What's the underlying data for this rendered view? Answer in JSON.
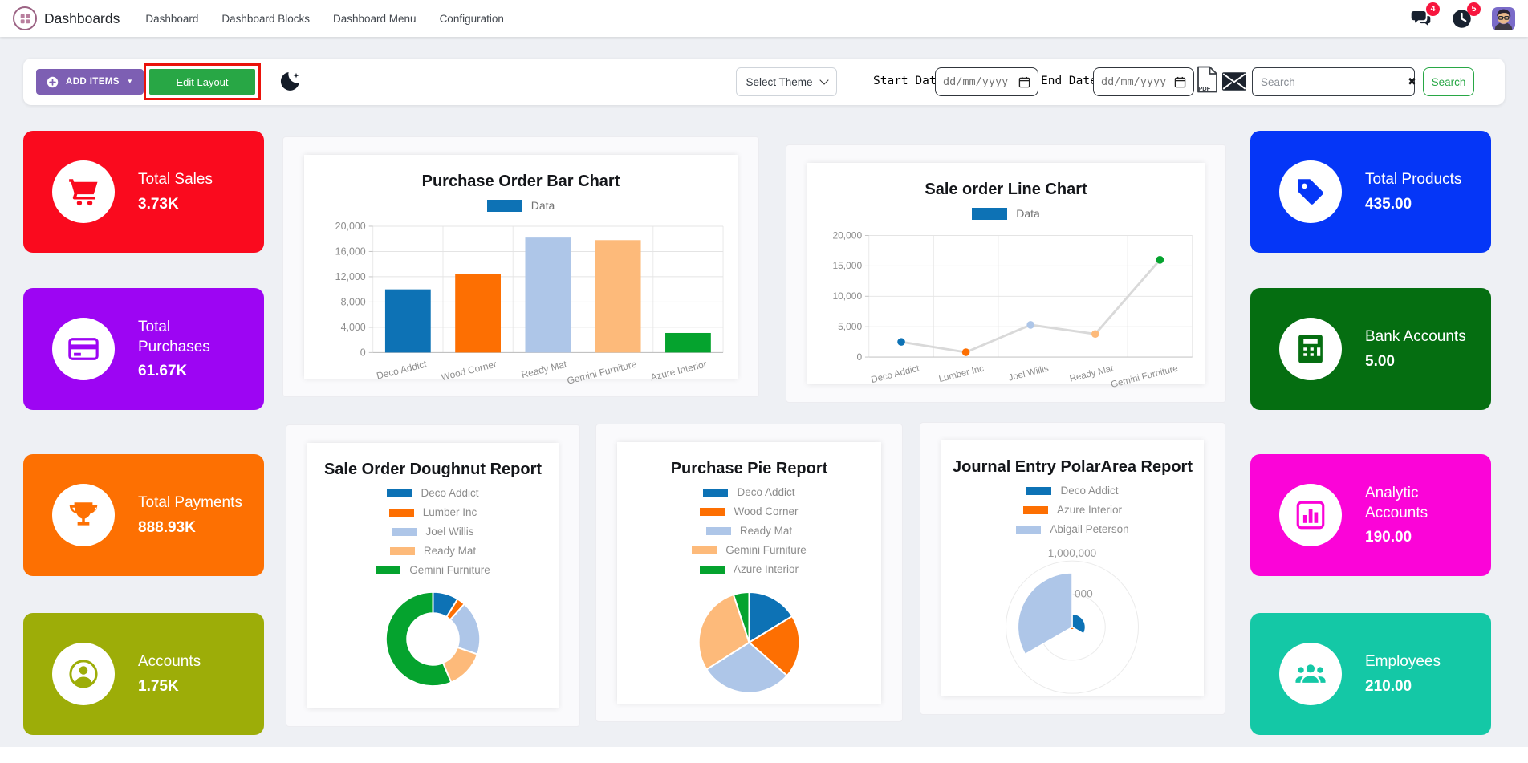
{
  "navbar": {
    "brand": "Dashboards",
    "menu_items": [
      "Dashboard",
      "Dashboard Blocks",
      "Dashboard Menu",
      "Configuration"
    ],
    "messages_badge_count": "4",
    "activities_badge_count": "5",
    "badge_color": "#f7163e"
  },
  "toolbar": {
    "add_items": {
      "label": "ADD ITEMS",
      "color": "#7d5fb3",
      "caret_glyph": "▼"
    },
    "edit_layout_label": "Edit Layout",
    "edit_layout_color": "#28a745",
    "highlight_color": "#ea130b",
    "select_theme_label": "Select Theme",
    "start_date_label": "Start Date:",
    "end_date_label": "End Date:",
    "date_placeholder": "dd/mm/yyyy",
    "pdf_icon_label": "PDF",
    "search": {
      "placeholder": "Search",
      "clear_glyph": "✖",
      "button_label": "Search",
      "button_color": "#28a745"
    }
  },
  "kpi_tiles": {
    "left": [
      {
        "label": "Total Sales",
        "value": "3.73K",
        "color": "#fa0a1e",
        "icon": "shopping-cart-icon"
      },
      {
        "label": "Total Purchases",
        "value": "61.67K",
        "color": "#9d05f3",
        "icon": "credit-card-icon"
      },
      {
        "label": "Total Payments",
        "value": "888.93K",
        "color": "#fd7002",
        "icon": "trophy-icon"
      },
      {
        "label": "Accounts",
        "value": "1.75K",
        "color": "#9dad08",
        "icon": "person-circle-icon"
      }
    ],
    "right": [
      {
        "label": "Total Products",
        "value": "435.00",
        "color": "#0536f7",
        "icon": "tag-icon"
      },
      {
        "label": "Bank Accounts",
        "value": "5.00",
        "color": "#056e11",
        "icon": "calculator-icon"
      },
      {
        "label": "Analytic Accounts",
        "value": "190.00",
        "color": "#fb04d8",
        "icon": "bar-chart-icon"
      },
      {
        "label": "Employees",
        "value": "210.00",
        "color": "#14c8a6",
        "icon": "employees-icon"
      }
    ]
  },
  "chart_data": [
    {
      "type": "bar",
      "title": "Purchase Order Bar Chart",
      "legend": [
        {
          "label": "Data",
          "color": "#0d72b5"
        }
      ],
      "legend_position": "top",
      "categories": [
        "Deco Addict",
        "Wood Corner",
        "Ready Mat",
        "Gemini Furniture",
        "Azure Interior"
      ],
      "values": [
        10000,
        12400,
        18200,
        17800,
        3100
      ],
      "bar_colors": [
        "#0d72b5",
        "#fd6f02",
        "#aec6e8",
        "#fdba7a",
        "#05a32e"
      ],
      "ylim": [
        0,
        20000
      ],
      "ytick_step": 4000,
      "grid": true
    },
    {
      "type": "line",
      "title": "Sale order Line Chart",
      "legend": [
        {
          "label": "Data",
          "color": "#0d72b5"
        }
      ],
      "legend_position": "top",
      "categories": [
        "Deco Addict",
        "Lumber Inc",
        "Joel Willis",
        "Ready Mat",
        "Gemini Furniture"
      ],
      "values": [
        2500,
        800,
        5300,
        3800,
        16000
      ],
      "point_colors": [
        "#0d72b5",
        "#fd6f02",
        "#aec6e8",
        "#fdba7a",
        "#05a32e"
      ],
      "line_color": "#d9d9d9",
      "ylim": [
        0,
        20000
      ],
      "ytick_step": 5000,
      "grid": true
    },
    {
      "type": "doughnut",
      "title": "Sale Order Doughnut Report",
      "legend_position": "top",
      "labels": [
        "Deco Addict",
        "Lumber Inc",
        "Joel Willis",
        "Ready Mat",
        "Gemini Furniture"
      ],
      "values": [
        2500,
        800,
        5300,
        3800,
        16000
      ],
      "colors": [
        "#0d72b5",
        "#fd6f02",
        "#aec6e8",
        "#fdba7a",
        "#05a32e"
      ]
    },
    {
      "type": "pie",
      "title": "Purchase Pie Report",
      "legend_position": "top",
      "labels": [
        "Deco Addict",
        "Wood Corner",
        "Ready Mat",
        "Gemini Furniture",
        "Azure Interior"
      ],
      "values": [
        10000,
        12400,
        18200,
        17800,
        3100
      ],
      "colors": [
        "#0d72b5",
        "#fd6f02",
        "#aec6e8",
        "#fdba7a",
        "#05a32e"
      ]
    },
    {
      "type": "polarArea",
      "title": "Journal Entry PolarArea Report",
      "legend_position": "top",
      "labels": [
        "Deco Addict",
        "Azure Interior",
        "Abigail Peterson"
      ],
      "values": [
        200000,
        40000,
        820000
      ],
      "colors": [
        "#0d72b5",
        "#fd6f02",
        "#aec6e8"
      ],
      "rlim": [
        0,
        1000000
      ],
      "r_ticks": [
        {
          "value": 500000,
          "label": "500,000",
          "visible_text": "000"
        },
        {
          "value": 1000000,
          "label": "1,000,000",
          "visible_text": "1,000,000"
        }
      ]
    }
  ]
}
